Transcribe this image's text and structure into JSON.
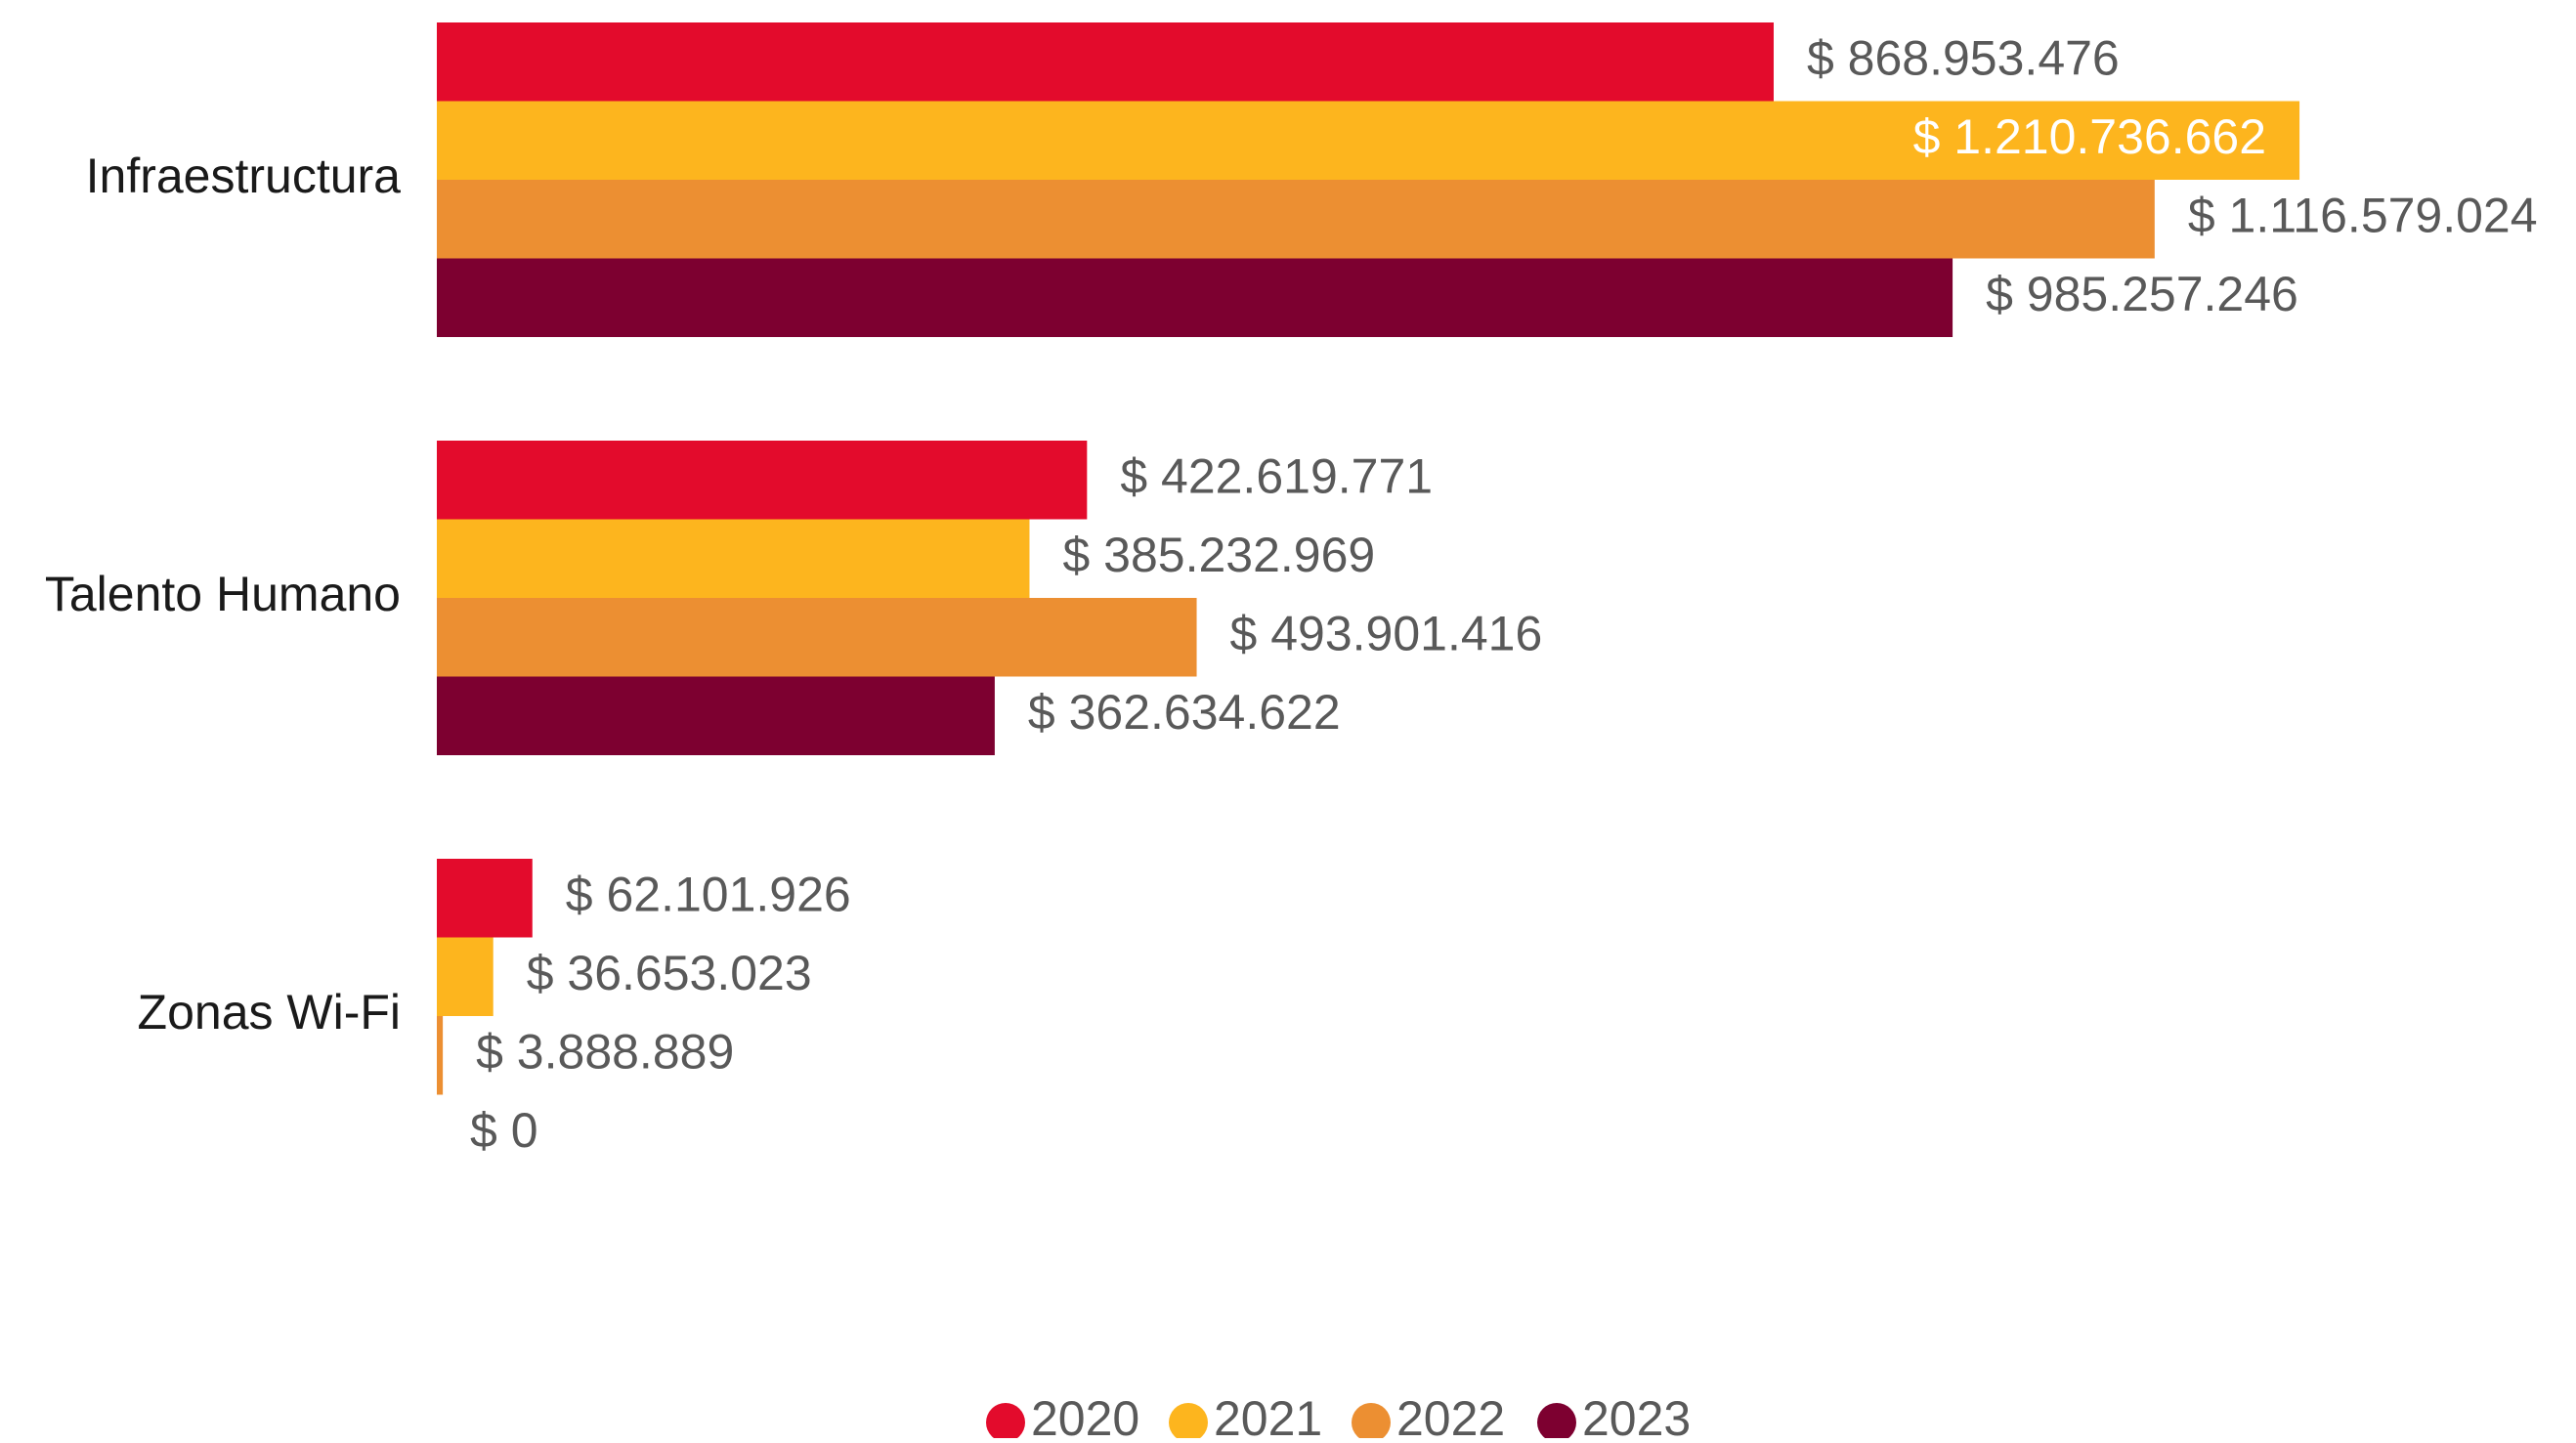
{
  "chart_data": {
    "type": "bar",
    "orientation": "horizontal",
    "title": "",
    "xlabel": "",
    "ylabel": "",
    "categories": [
      "Infraestructura",
      "Talento Humano",
      "Zonas Wi-Fi"
    ],
    "series": [
      {
        "name": "2020",
        "color": "#E30B2C",
        "values": [
          868953476,
          422619771,
          62101926
        ],
        "labels": [
          "$ 868.953.476",
          "$ 422.619.771",
          "$ 62.101.926"
        ]
      },
      {
        "name": "2021",
        "color": "#FDB51E",
        "values": [
          1210736662,
          385232969,
          36653023
        ],
        "labels": [
          "$ 1.210.736.662",
          "$ 385.232.969",
          "$ 36.653.023"
        ]
      },
      {
        "name": "2022",
        "color": "#EC8F32",
        "values": [
          1116579024,
          493901416,
          3888889
        ],
        "labels": [
          "$ 1.116.579.024",
          "$ 493.901.416",
          "$ 3.888.889"
        ]
      },
      {
        "name": "2023",
        "color": "#7D0030",
        "values": [
          985257246,
          362634622,
          0
        ],
        "labels": [
          "$ 985.257.246",
          "$ 362.634.622",
          "$ 0"
        ]
      }
    ],
    "xlim": [
      0,
      1346000000
    ],
    "grid": false,
    "legend_position": "bottom",
    "label_inside_bar": [
      [
        false,
        false,
        false
      ],
      [
        true,
        false,
        false
      ],
      [
        false,
        false,
        false
      ],
      [
        false,
        false,
        false
      ]
    ]
  }
}
